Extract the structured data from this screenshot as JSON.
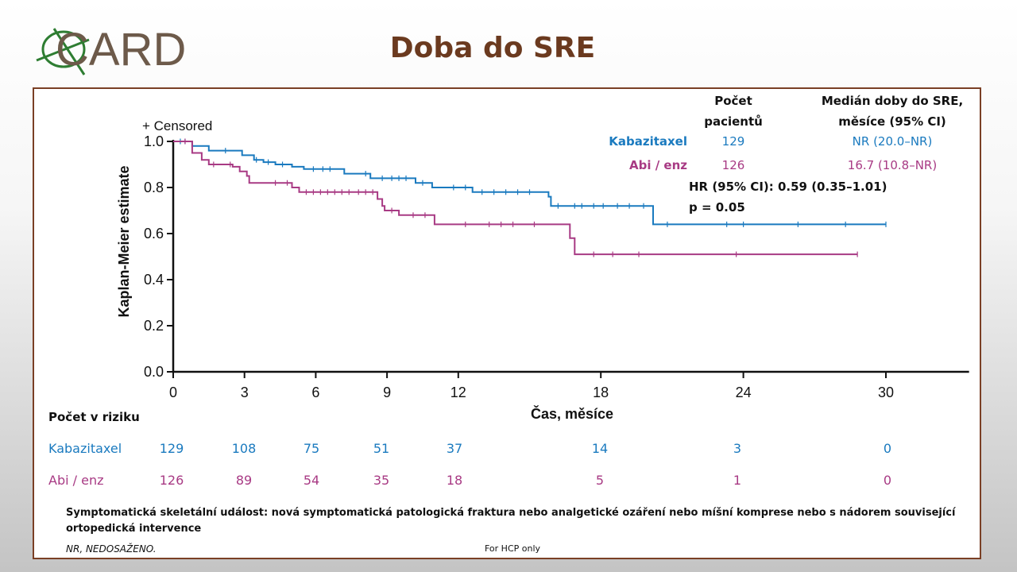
{
  "logo_text": "CARD",
  "slide_title": "Doba do SRE",
  "table_header": {
    "patients": [
      "Počet",
      "pacientů"
    ],
    "median": [
      "Medián doby do SRE,",
      "měsíce (95% CI)"
    ]
  },
  "legend": [
    {
      "name": "Kabazitaxel",
      "patients": "129",
      "median": "NR (20.0–NR)",
      "color": "#1a7abf"
    },
    {
      "name": "Abi / enz",
      "patients": "126",
      "median": "16.7 (10.8–NR)",
      "color": "#a83a84"
    }
  ],
  "stats": {
    "hr": "HR (95% CI): 0.59 (0.35–1.01)",
    "p": "p = 0.05"
  },
  "censored_label": "+ Censored",
  "risk": {
    "title": "Počet v riziku",
    "rows": [
      {
        "name": "Kabazitaxel",
        "values": [
          "129",
          "108",
          "75",
          "51",
          "37",
          "14",
          "3",
          "0"
        ],
        "color": "#1a7abf"
      },
      {
        "name": "Abi / enz",
        "values": [
          "126",
          "89",
          "54",
          "35",
          "18",
          "5",
          "1",
          "0"
        ],
        "color": "#a83a84"
      }
    ]
  },
  "footnote": [
    "Symptomatická skeletální událost: nová symptomatická patologická fraktura nebo analgetické ozáření nebo míšní komprese nebo s nádorem související",
    "ortopedická intervence"
  ],
  "nr_note": "NR, NEDOSAŽENO.",
  "hcp_note": "For HCP only",
  "chart_data": {
    "type": "line",
    "subtype": "kaplan-meier step",
    "xlabel": "Čas, měsíce",
    "ylabel": "Kaplan-Meier estimate",
    "xlim": [
      0,
      33.5
    ],
    "ylim": [
      0,
      1.0
    ],
    "xticks": [
      0,
      3,
      6,
      9,
      12,
      18,
      24,
      30
    ],
    "yticks": [
      "0.0",
      "0.2",
      "0.4",
      "0.6",
      "0.8",
      "1.0"
    ],
    "grid": false,
    "series": [
      {
        "name": "Kabazitaxel",
        "color": "#1a7abf",
        "steps": [
          [
            0,
            1.0
          ],
          [
            0.8,
            0.98
          ],
          [
            1.5,
            0.96
          ],
          [
            2.9,
            0.94
          ],
          [
            3.4,
            0.92
          ],
          [
            3.8,
            0.91
          ],
          [
            4.3,
            0.9
          ],
          [
            5.0,
            0.89
          ],
          [
            5.5,
            0.88
          ],
          [
            7.2,
            0.86
          ],
          [
            8.3,
            0.84
          ],
          [
            10.2,
            0.82
          ],
          [
            10.9,
            0.8
          ],
          [
            12.6,
            0.78
          ],
          [
            15.8,
            0.76
          ],
          [
            15.9,
            0.72
          ],
          [
            20.2,
            0.64
          ],
          [
            30.0,
            0.64
          ]
        ],
        "censored": [
          0.3,
          0.5,
          2.2,
          3.5,
          4.0,
          4.6,
          5.9,
          6.3,
          6.6,
          8.1,
          8.8,
          9.2,
          9.5,
          9.8,
          10.5,
          11.8,
          12.3,
          13.0,
          13.5,
          14.0,
          14.5,
          15.0,
          16.2,
          16.9,
          17.2,
          17.7,
          18.1,
          18.7,
          19.2,
          19.8,
          20.8,
          23.3,
          24.0,
          26.3,
          28.3,
          30.0
        ]
      },
      {
        "name": "Abi / enz",
        "color": "#a83a84",
        "steps": [
          [
            0,
            1.0
          ],
          [
            0.8,
            0.95
          ],
          [
            1.2,
            0.92
          ],
          [
            1.5,
            0.9
          ],
          [
            2.5,
            0.89
          ],
          [
            2.8,
            0.87
          ],
          [
            3.1,
            0.85
          ],
          [
            3.2,
            0.82
          ],
          [
            5.0,
            0.8
          ],
          [
            5.3,
            0.78
          ],
          [
            8.6,
            0.75
          ],
          [
            8.8,
            0.72
          ],
          [
            8.9,
            0.7
          ],
          [
            9.5,
            0.68
          ],
          [
            11.0,
            0.64
          ],
          [
            16.7,
            0.58
          ],
          [
            16.9,
            0.51
          ],
          [
            28.8,
            0.51
          ]
        ],
        "censored": [
          0.5,
          1.7,
          2.4,
          4.3,
          4.8,
          5.6,
          5.9,
          6.2,
          6.5,
          6.8,
          7.1,
          7.4,
          7.8,
          8.1,
          8.4,
          9.2,
          10.1,
          10.6,
          12.3,
          13.3,
          13.8,
          14.3,
          15.2,
          17.7,
          18.5,
          19.6,
          23.7,
          28.8
        ]
      }
    ]
  }
}
